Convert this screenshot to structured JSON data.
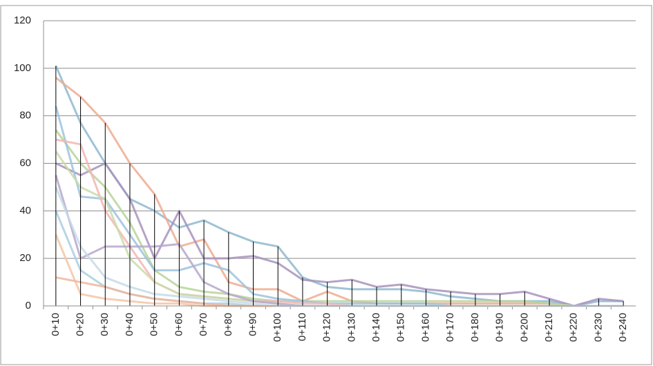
{
  "chart_data": {
    "type": "line",
    "categories": [
      "0+10",
      "0+20",
      "0+30",
      "0+40",
      "0+50",
      "0+60",
      "0+70",
      "0+80",
      "0+90",
      "0+100",
      "0+110",
      "0+120",
      "0+130",
      "0+140",
      "0+150",
      "0+160",
      "0+170",
      "0+180",
      "0+190",
      "0+200",
      "0+210",
      "0+220",
      "0+230",
      "0+240"
    ],
    "ylim": [
      0,
      120
    ],
    "yticks": [
      0,
      20,
      40,
      60,
      80,
      100,
      120
    ],
    "grid": true,
    "drop_lines": true,
    "series": [
      {
        "color": "#8fb9cf",
        "values": [
          101,
          77,
          60,
          45,
          40,
          33,
          36,
          31,
          27,
          25,
          12,
          8,
          7,
          7,
          7,
          6,
          4,
          3,
          2,
          2,
          2,
          0,
          2,
          2
        ]
      },
      {
        "color": "#eeab90",
        "values": [
          96,
          88,
          77,
          60,
          47,
          25,
          28,
          10,
          7,
          7,
          2,
          6,
          2,
          1,
          1,
          1,
          1,
          1,
          1,
          1,
          1,
          0,
          0,
          0
        ]
      },
      {
        "color": "#a793bd",
        "values": [
          60,
          55,
          60,
          45,
          20,
          40,
          20,
          20,
          21,
          18,
          11,
          10,
          11,
          8,
          9,
          7,
          6,
          5,
          5,
          6,
          3,
          0,
          3,
          2
        ]
      },
      {
        "color": "#b8d49a",
        "values": [
          74,
          60,
          50,
          35,
          15,
          8,
          6,
          5,
          3,
          2,
          2,
          2,
          2,
          2,
          2,
          2,
          2,
          2,
          2,
          2,
          1,
          0,
          0,
          0
        ]
      },
      {
        "color": "#9cc3de",
        "values": [
          84,
          46,
          45,
          30,
          15,
          15,
          18,
          15,
          5,
          3,
          2,
          1,
          1,
          1,
          1,
          1,
          0,
          0,
          0,
          0,
          0,
          0,
          0,
          0
        ]
      },
      {
        "color": "#f3b5b5",
        "values": [
          70,
          68,
          40,
          25,
          10,
          5,
          4,
          3,
          2,
          2,
          1,
          1,
          0,
          0,
          0,
          0,
          0,
          0,
          0,
          0,
          0,
          0,
          0,
          0
        ]
      },
      {
        "color": "#c9dca9",
        "values": [
          65,
          50,
          45,
          20,
          10,
          5,
          4,
          3,
          2,
          1,
          0,
          0,
          0,
          0,
          0,
          0,
          0,
          0,
          0,
          0,
          0,
          0,
          0,
          0
        ]
      },
      {
        "color": "#b7a7cc",
        "values": [
          55,
          20,
          25,
          25,
          25,
          26,
          10,
          5,
          2,
          1,
          0,
          0,
          0,
          0,
          0,
          0,
          0,
          0,
          0,
          0,
          0,
          0,
          0,
          0
        ]
      },
      {
        "color": "#a9cfe0",
        "values": [
          40,
          15,
          8,
          5,
          3,
          2,
          1,
          1,
          0,
          0,
          0,
          0,
          0,
          0,
          0,
          0,
          0,
          0,
          0,
          0,
          0,
          0,
          0,
          0
        ]
      },
      {
        "color": "#f4c6a6",
        "values": [
          30,
          5,
          3,
          2,
          1,
          1,
          0,
          0,
          0,
          0,
          0,
          0,
          0,
          0,
          0,
          0,
          0,
          0,
          0,
          0,
          0,
          0,
          0,
          0
        ]
      },
      {
        "color": "#f0b79c",
        "values": [
          12,
          10,
          8,
          5,
          3,
          2,
          1,
          0,
          0,
          0,
          0,
          0,
          0,
          0,
          0,
          0,
          0,
          0,
          0,
          0,
          0,
          0,
          0,
          0
        ]
      },
      {
        "color": "#c4dbe9",
        "values": [
          50,
          25,
          12,
          8,
          5,
          4,
          3,
          2,
          1,
          0,
          0,
          0,
          0,
          0,
          0,
          0,
          0,
          0,
          0,
          0,
          0,
          0,
          0,
          0
        ]
      }
    ]
  }
}
